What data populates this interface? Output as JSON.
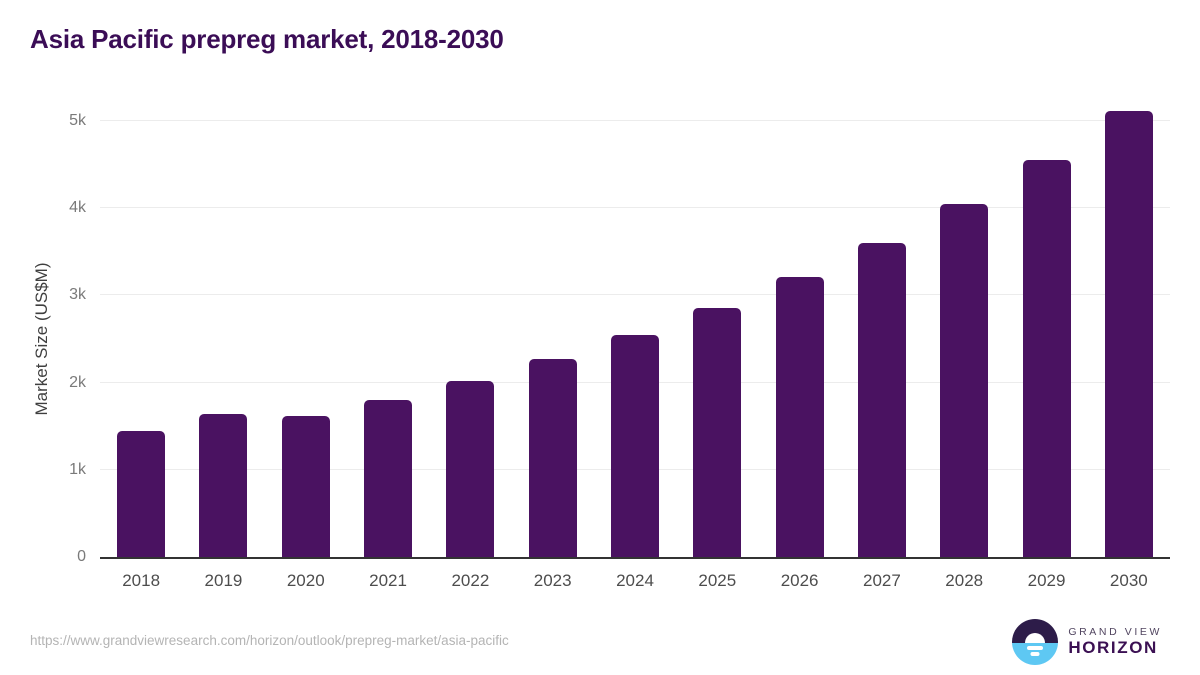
{
  "title": "Asia Pacific prepreg market, 2018-2030",
  "chart_data": {
    "type": "bar",
    "title": "Asia Pacific prepreg market, 2018-2030",
    "categories": [
      "2018",
      "2019",
      "2020",
      "2021",
      "2022",
      "2023",
      "2024",
      "2025",
      "2026",
      "2027",
      "2028",
      "2029",
      "2030"
    ],
    "values": [
      1450,
      1640,
      1620,
      1800,
      2020,
      2270,
      2550,
      2860,
      3210,
      3600,
      4050,
      4550,
      5120
    ],
    "xlabel": "",
    "ylabel": "Market Size (US$M)",
    "ylim": [
      0,
      5000
    ],
    "ytick_labels": [
      "0",
      "1k",
      "2k",
      "3k",
      "4k",
      "5k"
    ],
    "grid": true,
    "legend": false,
    "bar_color": "#4a1261"
  },
  "footer": {
    "source_url": "https://www.grandviewresearch.com/horizon/outlook/prepreg-market/asia-pacific",
    "logo": {
      "brand_top": "GRAND VIEW",
      "brand_bottom": "HORIZON",
      "icon": "sunrise-horizon-icon"
    }
  },
  "colors": {
    "background": "#ffffff",
    "bar": "#4a1261",
    "title": "#3b0d56",
    "gridline": "#ececec",
    "axis_line": "#333333",
    "y_tick_text": "#7a7a7a",
    "x_tick_text": "#4d4d4d",
    "axis_title_text": "#3f3f3f",
    "source_url_text": "#b4b4b4",
    "logo_navy": "#2d1c49",
    "logo_blue": "#5ec8f3",
    "logo_brand_top_text": "#514560",
    "logo_brand_bottom_text": "#3b1053"
  }
}
